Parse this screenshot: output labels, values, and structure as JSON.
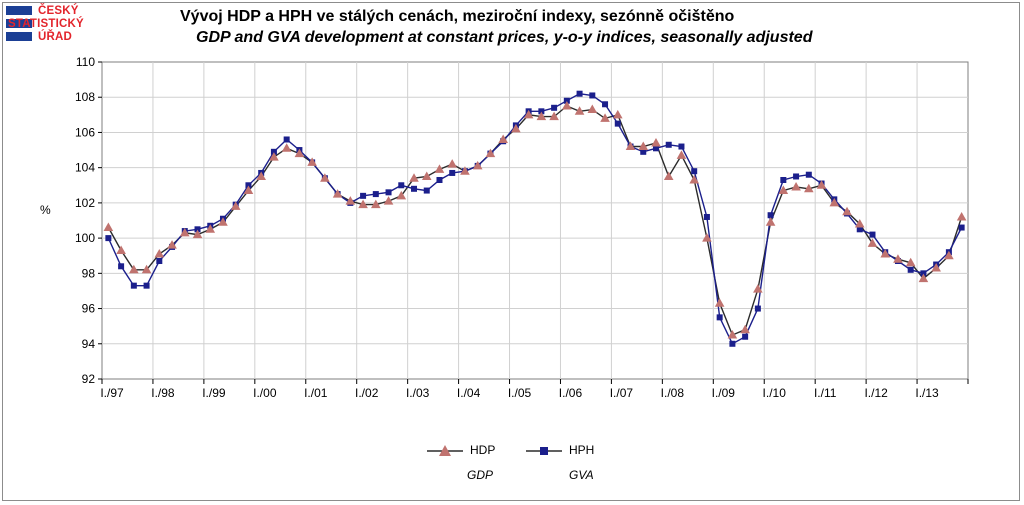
{
  "logo": {
    "lines": [
      "ČESKÝ",
      "STATISTICKÝ",
      "ÚŘAD"
    ]
  },
  "colors": {
    "hdp": "#c0504d",
    "hdp_marker": "#c0736f",
    "hph": "#1b1f8c",
    "line": "#000000",
    "grid": "#d0d0d0",
    "logo_blue": "#1b3f95",
    "logo_red": "#e3242b"
  },
  "chart_data": {
    "type": "line",
    "title": "Vývoj HDP a HPH ve stálých cenách, meziroční indexy, sezónně očištěno",
    "subtitle": "GDP and GVA development at constant prices, y-o-y indices, seasonally adjusted",
    "ylabel": "%",
    "xlabel": "",
    "ylim": [
      92,
      110
    ],
    "yticks": [
      92,
      94,
      96,
      98,
      100,
      102,
      104,
      106,
      108,
      110
    ],
    "grid": true,
    "legend_position": "bottom",
    "x_tick_labels": [
      "I./97",
      "I./98",
      "I./99",
      "I./00",
      "I./01",
      "I./02",
      "I./03",
      "I./04",
      "I./05",
      "I./06",
      "I./07",
      "I./08",
      "I./09",
      "I./10",
      "I./11",
      "I./12",
      "I./13"
    ],
    "quarters_start": "1997Q1",
    "series": [
      {
        "name": "HDP",
        "name_en": "GDP",
        "marker": "triangle",
        "values": [
          100.6,
          99.3,
          98.2,
          98.2,
          99.1,
          99.6,
          100.3,
          100.2,
          100.5,
          100.9,
          101.8,
          102.7,
          103.5,
          104.6,
          105.1,
          104.8,
          104.3,
          103.4,
          102.5,
          102.1,
          101.9,
          101.9,
          102.1,
          102.4,
          103.4,
          103.5,
          103.9,
          104.2,
          103.8,
          104.1,
          104.8,
          105.6,
          106.2,
          107.0,
          106.9,
          106.9,
          107.5,
          107.2,
          107.3,
          106.8,
          107.0,
          105.2,
          105.2,
          105.4,
          103.5,
          104.7,
          103.3,
          100.0,
          96.3,
          94.5,
          94.8,
          97.1,
          100.9,
          102.7,
          102.9,
          102.8,
          103.0,
          102.0,
          101.5,
          100.8,
          99.7,
          99.1,
          98.8,
          98.6,
          97.7,
          98.3,
          99.0,
          101.2
        ]
      },
      {
        "name": "HPH",
        "name_en": "GVA",
        "marker": "square",
        "values": [
          100.0,
          98.4,
          97.3,
          97.3,
          98.7,
          99.5,
          100.4,
          100.5,
          100.7,
          101.1,
          101.9,
          103.0,
          103.7,
          104.9,
          105.6,
          105.0,
          104.3,
          103.4,
          102.5,
          102.0,
          102.4,
          102.5,
          102.6,
          103.0,
          102.8,
          102.7,
          103.3,
          103.7,
          103.8,
          104.1,
          104.8,
          105.5,
          106.4,
          107.2,
          107.2,
          107.4,
          107.8,
          108.2,
          108.1,
          107.6,
          106.5,
          105.2,
          104.9,
          105.1,
          105.3,
          105.2,
          103.8,
          101.2,
          95.5,
          94.0,
          94.4,
          96.0,
          101.3,
          103.3,
          103.5,
          103.6,
          103.1,
          102.2,
          101.4,
          100.5,
          100.2,
          99.2,
          98.7,
          98.2,
          98.0,
          98.5,
          99.2,
          100.6
        ]
      }
    ]
  }
}
